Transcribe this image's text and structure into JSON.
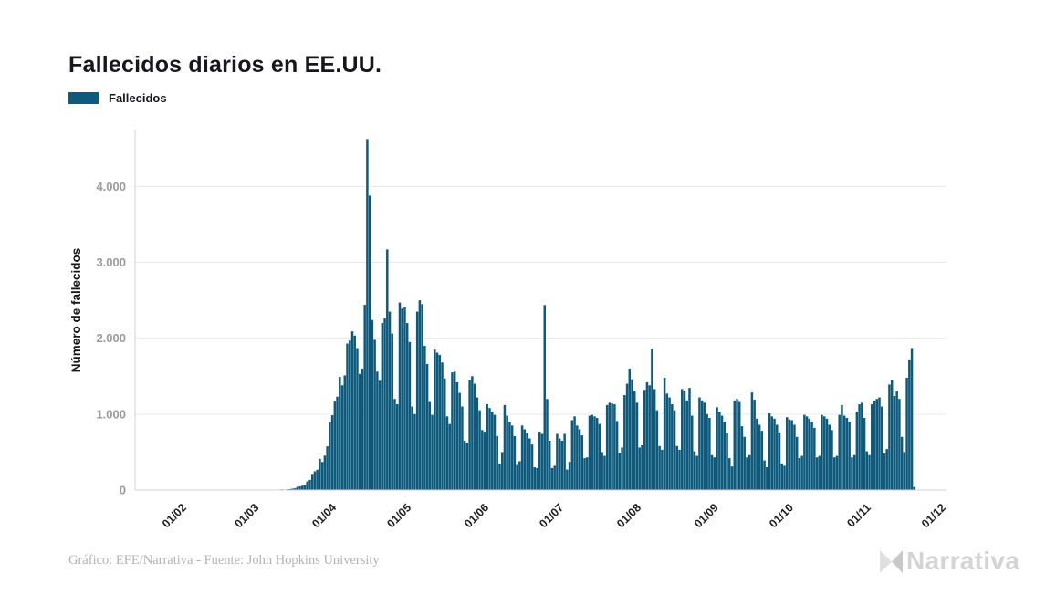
{
  "header": {
    "title": "Fallecidos diarios en EE.UU."
  },
  "legend": {
    "items": [
      {
        "label": "Fallecidos",
        "color": "#0e5a7d"
      }
    ]
  },
  "footer": {
    "credit": "Gráfico: EFE/Narrativa - Fuente: John Hopkins University"
  },
  "brand": {
    "name": "Narrativa",
    "icon": "narrativa-n-icon",
    "icon_colors": [
      "#e0e0e0",
      "#c9c9c9"
    ],
    "text_color": "#d4d4d4"
  },
  "chart_data": {
    "type": "bar",
    "title": "Fallecidos diarios en EE.UU.",
    "series_name": "Fallecidos",
    "bar_color": "#0e5a7d",
    "xlabel": "",
    "ylabel": "Número de fallecidos",
    "ylim": [
      0,
      4750
    ],
    "grid": "horizontal",
    "legend_position": "top-left",
    "y_ticks": [
      {
        "value": 0,
        "label": "0"
      },
      {
        "value": 1000,
        "label": "1.000"
      },
      {
        "value": 2000,
        "label": "2.000"
      },
      {
        "value": 3000,
        "label": "3.000"
      },
      {
        "value": 4000,
        "label": "4.000"
      }
    ],
    "x_ticks": [
      {
        "label": "01/02",
        "day": 10
      },
      {
        "label": "01/03",
        "day": 39
      },
      {
        "label": "01/04",
        "day": 70
      },
      {
        "label": "01/05",
        "day": 100
      },
      {
        "label": "01/06",
        "day": 131
      },
      {
        "label": "01/07",
        "day": 161
      },
      {
        "label": "01/08",
        "day": 192
      },
      {
        "label": "01/09",
        "day": 223
      },
      {
        "label": "01/10",
        "day": 253
      },
      {
        "label": "01/11",
        "day": 284
      },
      {
        "label": "01/12",
        "day": 314
      }
    ],
    "values": [
      0,
      0,
      0,
      0,
      0,
      0,
      0,
      0,
      0,
      0,
      0,
      0,
      0,
      0,
      0,
      1,
      0,
      0,
      0,
      0,
      0,
      0,
      0,
      0,
      0,
      0,
      0,
      0,
      0,
      0,
      0,
      0,
      0,
      0,
      0,
      0,
      0,
      0,
      1,
      1,
      1,
      4,
      3,
      2,
      3,
      4,
      5,
      3,
      5,
      7,
      8,
      6,
      10,
      12,
      18,
      23,
      41,
      49,
      57,
      63,
      113,
      134,
      200,
      247,
      268,
      411,
      370,
      453,
      576,
      890,
      985,
      1165,
      1230,
      1490,
      1380,
      1510,
      1930,
      1970,
      2090,
      2035,
      1870,
      1530,
      1600,
      2440,
      4625,
      3880,
      2240,
      1980,
      1560,
      1440,
      2200,
      2260,
      3170,
      2350,
      2060,
      1200,
      1130,
      2470,
      2390,
      2410,
      2200,
      1950,
      1100,
      1000,
      2350,
      2500,
      2450,
      1900,
      1660,
      1160,
      990,
      1850,
      1810,
      1780,
      1680,
      1470,
      970,
      870,
      1550,
      1560,
      1420,
      1280,
      1100,
      650,
      620,
      1450,
      1500,
      1400,
      1220,
      1050,
      790,
      770,
      1130,
      1080,
      1030,
      990,
      710,
      350,
      500,
      1120,
      980,
      900,
      850,
      710,
      330,
      380,
      850,
      800,
      750,
      680,
      600,
      300,
      290,
      770,
      740,
      2437,
      1200,
      650,
      290,
      320,
      740,
      680,
      650,
      740,
      270,
      370,
      920,
      970,
      850,
      800,
      720,
      420,
      430,
      980,
      990,
      970,
      950,
      870,
      500,
      450,
      1120,
      1150,
      1140,
      1130,
      910,
      490,
      560,
      1250,
      1400,
      1600,
      1460,
      1300,
      1150,
      560,
      590,
      1320,
      1420,
      1380,
      1860,
      1330,
      1050,
      580,
      530,
      1480,
      1270,
      1220,
      1130,
      1050,
      580,
      530,
      1330,
      1310,
      1180,
      1345,
      980,
      510,
      450,
      1220,
      1180,
      1150,
      1000,
      950,
      460,
      430,
      1090,
      1030,
      980,
      900,
      750,
      420,
      310,
      1180,
      1200,
      1160,
      840,
      700,
      430,
      460,
      1285,
      1190,
      940,
      860,
      780,
      390,
      300,
      1010,
      970,
      940,
      860,
      760,
      350,
      320,
      960,
      930,
      920,
      860,
      700,
      420,
      450,
      990,
      970,
      940,
      900,
      820,
      430,
      450,
      990,
      970,
      940,
      860,
      790,
      430,
      450,
      990,
      1120,
      980,
      950,
      900,
      430,
      460,
      1030,
      1130,
      1150,
      950,
      510,
      460,
      1130,
      1170,
      1200,
      1220,
      1100,
      480,
      540,
      1390,
      1450,
      1240,
      1300,
      1200,
      700,
      500,
      1480,
      1720,
      1870,
      40
    ]
  }
}
